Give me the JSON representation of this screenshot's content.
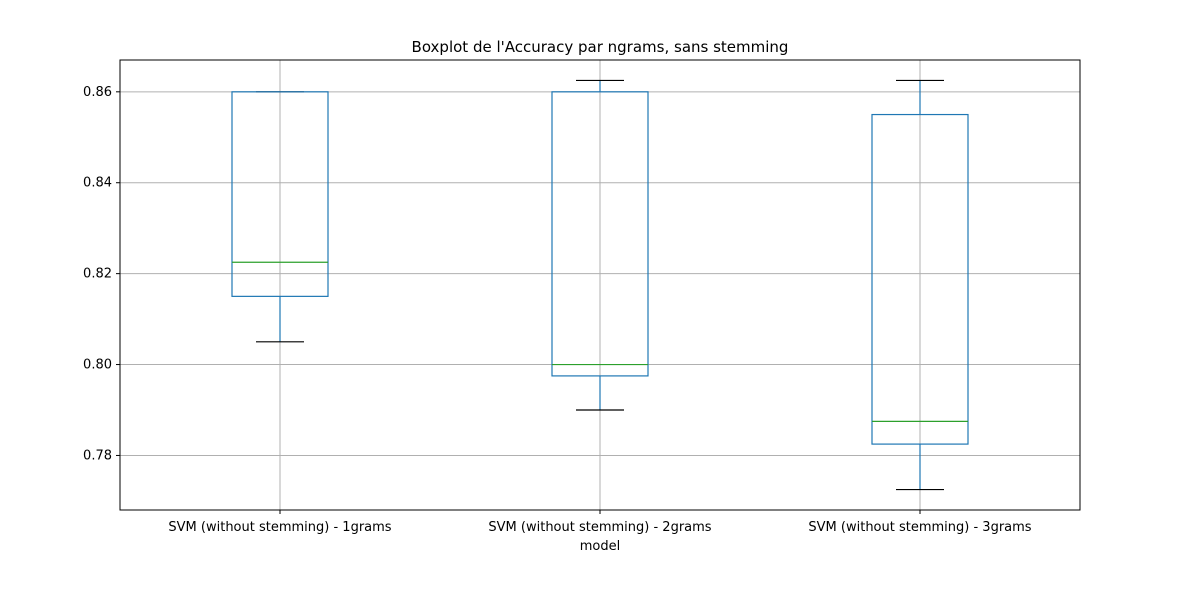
{
  "chart_data": {
    "type": "boxplot",
    "title": "Boxplot de l'Accuracy par ngrams, sans stemming",
    "xlabel": "model",
    "ylabel": "",
    "ylim": [
      0.768,
      0.867
    ],
    "yticks": [
      0.78,
      0.8,
      0.82,
      0.84,
      0.86
    ],
    "ytick_labels": [
      "0.78",
      "0.80",
      "0.82",
      "0.84",
      "0.86"
    ],
    "grid": true,
    "categories": [
      "SVM (without stemming) - 1grams",
      "SVM (without stemming) - 2grams",
      "SVM (without stemming) - 3grams"
    ],
    "boxes": [
      {
        "whisker_low": 0.805,
        "q1": 0.815,
        "median": 0.8225,
        "q3": 0.86,
        "whisker_high": 0.86
      },
      {
        "whisker_low": 0.79,
        "q1": 0.7975,
        "median": 0.8,
        "q3": 0.86,
        "whisker_high": 0.8625
      },
      {
        "whisker_low": 0.7725,
        "q1": 0.7825,
        "median": 0.7875,
        "q3": 0.855,
        "whisker_high": 0.8625
      }
    ],
    "colors": {
      "box": "#1f77b4",
      "median": "#2ca02c",
      "whisker_cap": "#000000",
      "grid": "#b0b0b0",
      "frame": "#000000"
    }
  }
}
